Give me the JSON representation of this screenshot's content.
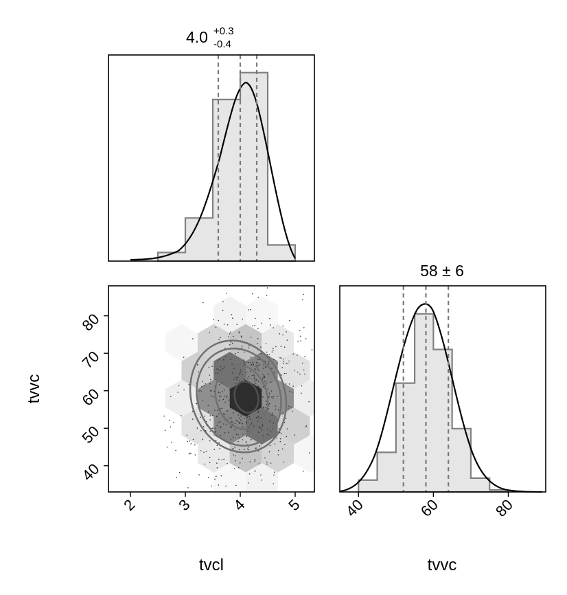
{
  "chart_data": [
    {
      "type": "histogram",
      "panel": "top-left",
      "parameter": "tvcl",
      "title_median": "4.0",
      "title_plus": "+0.3",
      "title_minus": "-0.4",
      "median": 4.0,
      "quantiles": [
        3.6,
        4.0,
        4.3
      ],
      "xlim": [
        1.6,
        5.35
      ],
      "bin_edges": [
        2.5,
        3.0,
        3.5,
        4.0,
        4.5,
        5.0
      ],
      "bin_heights": [
        0.08,
        0.4,
        1.5,
        1.5,
        1.75,
        0.15
      ],
      "bin_steps": [
        [
          2.5,
          0.08
        ],
        [
          3.0,
          0.4
        ],
        [
          3.5,
          1.5
        ],
        [
          4.0,
          1.5
        ],
        [
          4.0,
          1.75
        ],
        [
          4.5,
          1.75
        ],
        [
          4.5,
          0.15
        ],
        [
          5.0,
          0.15
        ]
      ],
      "kde_peak_x": 4.1
    },
    {
      "type": "histogram",
      "panel": "bottom-right",
      "parameter": "tvvc",
      "title_text": "58 ± 6",
      "median": 58,
      "quantiles": [
        52,
        58,
        64
      ],
      "xlim": [
        35,
        90
      ],
      "xticks": [
        "40",
        "60",
        "80"
      ],
      "bin_steps": [
        [
          40,
          0.06
        ],
        [
          45,
          0.2
        ],
        [
          50,
          0.55
        ],
        [
          55,
          0.9
        ],
        [
          60,
          0.72
        ],
        [
          65,
          0.32
        ],
        [
          70,
          0.07
        ],
        [
          75,
          0.01
        ]
      ]
    },
    {
      "type": "heatmap",
      "panel": "bottom-left",
      "xlabel": "tvcl",
      "ylabel": "tvvc",
      "xlim": [
        1.6,
        5.35
      ],
      "ylim": [
        33,
        88
      ],
      "xticks": [
        "2",
        "3",
        "4",
        "5"
      ],
      "yticks": [
        "40",
        "50",
        "60",
        "70",
        "80"
      ],
      "center": [
        4.1,
        58
      ],
      "contour_levels": 4,
      "scatter_points": true
    }
  ]
}
